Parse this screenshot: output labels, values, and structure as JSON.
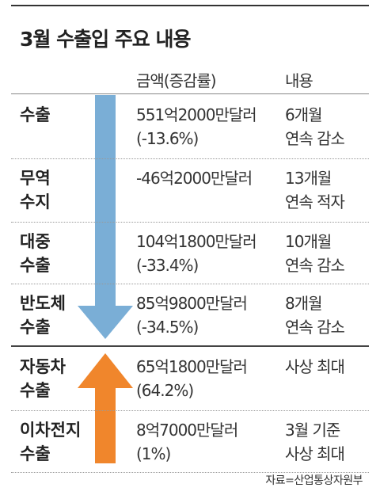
{
  "title": "3월 수출입 주요 내용",
  "table": {
    "header": [
      "금액(증감률)",
      "내용"
    ],
    "rows": [
      {
        "label": [
          "수출"
        ],
        "amount": [
          "551억2000만달러",
          "(-13.6%)"
        ],
        "note": [
          "6개월",
          "연속 감소"
        ]
      },
      {
        "label": [
          "무역",
          "수지"
        ],
        "amount": [
          "-46억2000만달러"
        ],
        "note": [
          "13개월",
          "연속 적자"
        ]
      },
      {
        "label": [
          "대중",
          "수출"
        ],
        "amount": [
          "104억1800만달러",
          "(-33.4%)"
        ],
        "note": [
          "10개월",
          "연속 감소"
        ]
      },
      {
        "label": [
          "반도체",
          "수출"
        ],
        "amount": [
          "85억9800만달러",
          "(-34.5%)"
        ],
        "note": [
          "8개월",
          "연속 감소"
        ]
      },
      {
        "label": [
          "자동차",
          "수출"
        ],
        "amount": [
          "65억1800만달러",
          "(64.2%)"
        ],
        "note": [
          "사상 최대"
        ]
      },
      {
        "label": [
          "이차전지",
          "수출"
        ],
        "amount": [
          "8억7000만달러",
          "(1%)"
        ],
        "note": [
          "3월 기준",
          "사상 최대"
        ]
      }
    ]
  },
  "source": "자료=산업통상자원부"
}
